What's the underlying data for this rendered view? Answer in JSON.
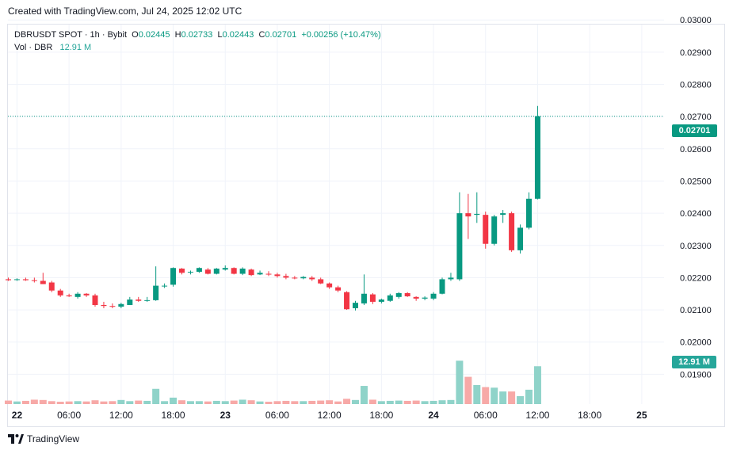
{
  "header": {
    "created_text": "Created with TradingView.com, Jul 24, 2025 12:02 UTC"
  },
  "legend": {
    "symbol": "DBRUSDT SPOT · 1h · Bybit",
    "o_label": "O",
    "o_value": "0.02445",
    "h_label": "H",
    "h_value": "0.02733",
    "l_label": "L",
    "l_value": "0.02443",
    "c_label": "C",
    "c_value": "0.02701",
    "change": "+0.00256 (+10.47%)",
    "vol_label": "Vol · DBR",
    "vol_value": "12.91 M"
  },
  "tags": {
    "last_price": "0.02701",
    "last_volume": "12.91 M"
  },
  "footer": {
    "brand": "TradingView"
  },
  "colors": {
    "up": "#089981",
    "down": "#f23645",
    "vol_up": "#8fd3c9",
    "vol_down": "#f7a9a7",
    "grid": "#f0f3fa"
  },
  "chart_data": {
    "type": "candlestick",
    "symbol": "DBRUSDT",
    "interval": "1h",
    "ylim": [
      0.0182,
      0.0303
    ],
    "y_ticks": [
      "0.01900",
      "0.02000",
      "0.02100",
      "0.02200",
      "0.02300",
      "0.02400",
      "0.02500",
      "0.02600",
      "0.02700",
      "0.02800",
      "0.02900",
      "0.03000"
    ],
    "x_ticks": [
      {
        "label": "22",
        "index": 1,
        "bold": true
      },
      {
        "label": "06:00",
        "index": 7
      },
      {
        "label": "12:00",
        "index": 13
      },
      {
        "label": "18:00",
        "index": 19
      },
      {
        "label": "23",
        "index": 25,
        "bold": true
      },
      {
        "label": "06:00",
        "index": 31
      },
      {
        "label": "12:00",
        "index": 37
      },
      {
        "label": "18:00",
        "index": 43
      },
      {
        "label": "24",
        "index": 49,
        "bold": true
      },
      {
        "label": "06:00",
        "index": 55
      },
      {
        "label": "12:00",
        "index": 61
      },
      {
        "label": "18:00",
        "index": 67
      },
      {
        "label": "25",
        "index": 73,
        "bold": true
      }
    ],
    "ohlc": [
      [
        0.02195,
        0.022,
        0.0219,
        0.02192
      ],
      [
        0.02193,
        0.02198,
        0.0219,
        0.02195
      ],
      [
        0.02195,
        0.022,
        0.0219,
        0.02192
      ],
      [
        0.02192,
        0.022,
        0.02185,
        0.0219
      ],
      [
        0.0219,
        0.02215,
        0.0218,
        0.0218
      ],
      [
        0.02185,
        0.0219,
        0.02155,
        0.0216
      ],
      [
        0.0216,
        0.02165,
        0.0214,
        0.02145
      ],
      [
        0.02145,
        0.0215,
        0.0214,
        0.02142
      ],
      [
        0.0214,
        0.02155,
        0.02135,
        0.0215
      ],
      [
        0.0215,
        0.02152,
        0.0214,
        0.02145
      ],
      [
        0.02145,
        0.0215,
        0.0211,
        0.02115
      ],
      [
        0.02115,
        0.02125,
        0.02105,
        0.02112
      ],
      [
        0.02112,
        0.0212,
        0.02105,
        0.0211
      ],
      [
        0.0211,
        0.02122,
        0.02105,
        0.02118
      ],
      [
        0.02115,
        0.0214,
        0.02115,
        0.02132
      ],
      [
        0.02132,
        0.0214,
        0.02125,
        0.02128
      ],
      [
        0.02128,
        0.0214,
        0.02125,
        0.0213
      ],
      [
        0.0213,
        0.02235,
        0.02128,
        0.02175
      ],
      [
        0.02175,
        0.02182,
        0.02168,
        0.02175
      ],
      [
        0.02178,
        0.02232,
        0.02172,
        0.0223
      ],
      [
        0.02228,
        0.0223,
        0.0221,
        0.02215
      ],
      [
        0.02218,
        0.02222,
        0.0221,
        0.02218
      ],
      [
        0.02218,
        0.02232,
        0.02215,
        0.0223
      ],
      [
        0.02225,
        0.0223,
        0.0221,
        0.02212
      ],
      [
        0.02212,
        0.0223,
        0.0221,
        0.02228
      ],
      [
        0.02225,
        0.02238,
        0.02222,
        0.0223
      ],
      [
        0.0223,
        0.02232,
        0.0221,
        0.02212
      ],
      [
        0.02212,
        0.02232,
        0.02208,
        0.02228
      ],
      [
        0.02225,
        0.02228,
        0.02205,
        0.02208
      ],
      [
        0.0221,
        0.02222,
        0.02208,
        0.02215
      ],
      [
        0.02212,
        0.0222,
        0.02205,
        0.0221
      ],
      [
        0.0221,
        0.02215,
        0.022,
        0.02205
      ],
      [
        0.02205,
        0.02212,
        0.02195,
        0.022
      ],
      [
        0.022,
        0.02205,
        0.02195,
        0.02198
      ],
      [
        0.02198,
        0.02205,
        0.02195,
        0.02202
      ],
      [
        0.022,
        0.02205,
        0.0219,
        0.02195
      ],
      [
        0.02195,
        0.022,
        0.0218,
        0.02182
      ],
      [
        0.02182,
        0.02185,
        0.02165,
        0.0217
      ],
      [
        0.0217,
        0.02175,
        0.02155,
        0.0216
      ],
      [
        0.02155,
        0.02158,
        0.021,
        0.02102
      ],
      [
        0.02105,
        0.02128,
        0.02098,
        0.02122
      ],
      [
        0.0212,
        0.0221,
        0.02115,
        0.0215
      ],
      [
        0.02148,
        0.02152,
        0.02118,
        0.02125
      ],
      [
        0.02125,
        0.02135,
        0.0212,
        0.02132
      ],
      [
        0.02128,
        0.0215,
        0.02125,
        0.02145
      ],
      [
        0.0214,
        0.02155,
        0.02135,
        0.02152
      ],
      [
        0.02152,
        0.02155,
        0.0214,
        0.02142
      ],
      [
        0.0214,
        0.02142,
        0.02128,
        0.02135
      ],
      [
        0.02135,
        0.02142,
        0.0213,
        0.02138
      ],
      [
        0.02135,
        0.02155,
        0.0213,
        0.0215
      ],
      [
        0.0215,
        0.022,
        0.02148,
        0.02195
      ],
      [
        0.02195,
        0.02215,
        0.0219,
        0.022
      ],
      [
        0.02195,
        0.02465,
        0.0219,
        0.024
      ],
      [
        0.024,
        0.0246,
        0.0232,
        0.0239
      ],
      [
        0.02395,
        0.02465,
        0.0237,
        0.02398
      ],
      [
        0.02395,
        0.02405,
        0.0229,
        0.02305
      ],
      [
        0.02305,
        0.02395,
        0.023,
        0.0239
      ],
      [
        0.02395,
        0.0241,
        0.0237,
        0.024
      ],
      [
        0.024,
        0.02405,
        0.0228,
        0.02285
      ],
      [
        0.02285,
        0.02365,
        0.02275,
        0.02355
      ],
      [
        0.02355,
        0.02465,
        0.0235,
        0.02445
      ],
      [
        0.02445,
        0.02733,
        0.02443,
        0.02701
      ]
    ],
    "volume_m": [
      1.2,
      0.9,
      1.1,
      1.5,
      1.4,
      1.0,
      0.8,
      0.9,
      1.0,
      0.9,
      1.3,
      0.9,
      1.0,
      1.4,
      1.0,
      1.2,
      1.1,
      5.2,
      1.0,
      2.2,
      1.3,
      1.0,
      1.0,
      0.9,
      1.1,
      1.0,
      1.2,
      1.5,
      1.3,
      0.9,
      0.8,
      1.0,
      1.1,
      1.0,
      1.0,
      1.1,
      1.2,
      1.3,
      0.9,
      1.8,
      1.4,
      6.2,
      1.5,
      1.0,
      1.1,
      1.2,
      1.1,
      1.2,
      1.0,
      1.1,
      1.3,
      1.4,
      14.8,
      9.3,
      6.5,
      5.8,
      5.6,
      4.3,
      4.3,
      2.7,
      4.9,
      12.91
    ]
  }
}
